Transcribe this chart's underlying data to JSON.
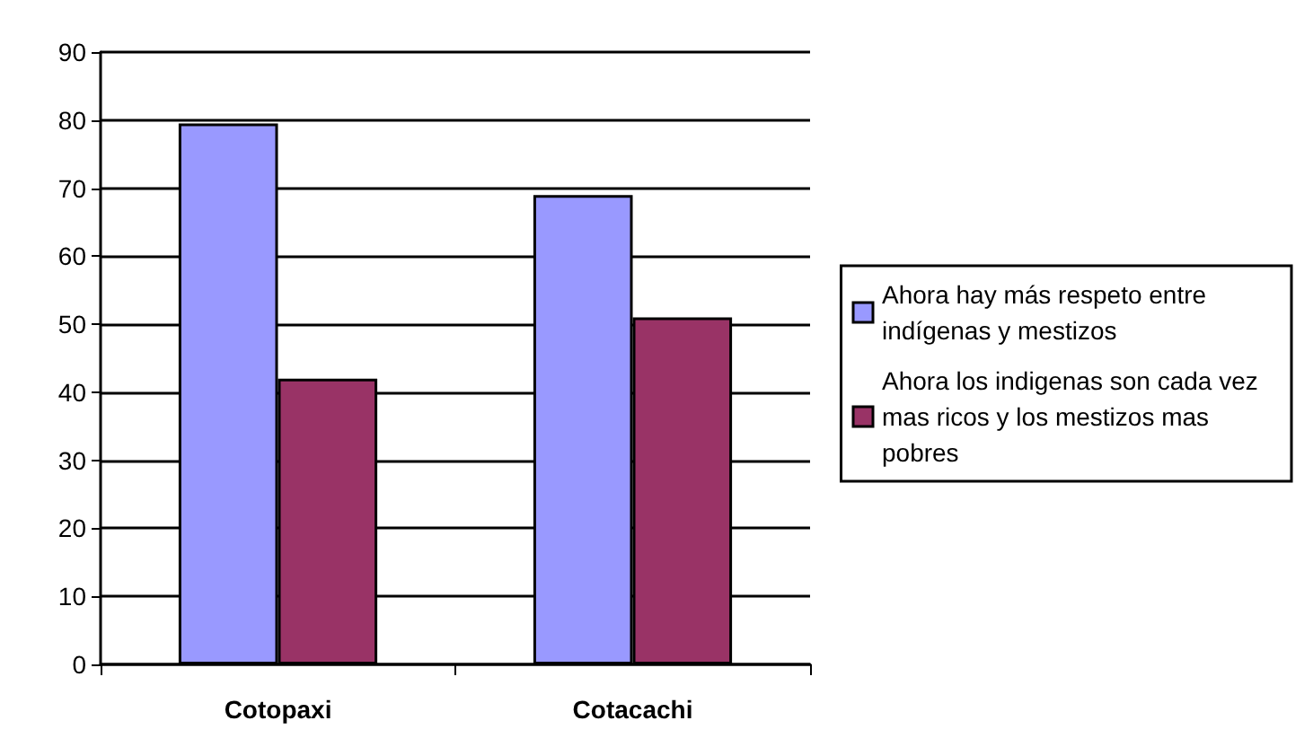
{
  "chart_data": {
    "type": "bar",
    "categories": [
      "Cotopaxi",
      "Cotacachi"
    ],
    "series": [
      {
        "name": "Ahora hay más respeto entre indígenas y mestizos",
        "color": "#9999ff",
        "values": [
          79.5,
          69
        ]
      },
      {
        "name": "Ahora los indigenas son cada vez mas ricos y los mestizos mas pobres",
        "color": "#993366",
        "values": [
          42,
          51
        ]
      }
    ],
    "ylim": [
      0,
      90
    ],
    "yticks": [
      0,
      10,
      20,
      30,
      40,
      50,
      60,
      70,
      80,
      90
    ],
    "grid": "y",
    "legend": "right"
  }
}
